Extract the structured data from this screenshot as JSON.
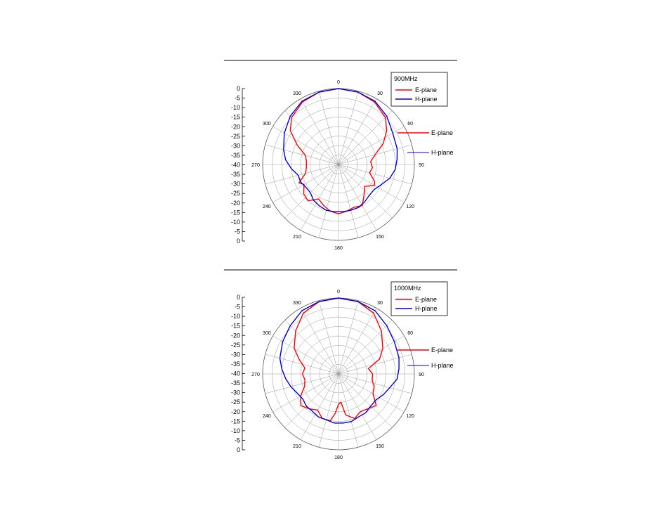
{
  "colors": {
    "e_plane": "#ff0000",
    "h_plane": "#0000dd",
    "grid": "#999999",
    "ink": "#000000"
  },
  "chart_data": [
    {
      "type": "polar",
      "legend_title": "900MHz",
      "legend_placement": "top-right",
      "grid": true,
      "rlim": [
        -40,
        0
      ],
      "radial_ticks": [
        "0",
        "-5",
        "-10",
        "-15",
        "-20",
        "-25",
        "-30",
        "-35",
        "-40",
        "-35",
        "-30",
        "-25",
        "-20",
        "-15",
        "-10",
        "-5",
        "0"
      ],
      "angle_labels": [
        "0",
        "30",
        "60",
        "90",
        "120",
        "150",
        "180",
        "210",
        "240",
        "270",
        "300",
        "330"
      ],
      "annotations": [
        "E-plane",
        "H-plane"
      ],
      "series": [
        {
          "name": "E-plane",
          "theta": [
            0,
            15,
            30,
            45,
            55,
            65,
            75,
            85,
            95,
            105,
            115,
            120,
            130,
            140,
            150,
            160,
            170,
            180,
            190,
            200,
            210,
            220,
            230,
            240,
            245,
            255,
            265,
            275,
            285,
            295,
            305,
            315,
            330,
            345
          ],
          "r_db": [
            0,
            -0.5,
            -2,
            -5,
            -9,
            -14,
            -20,
            -23,
            -22,
            -23,
            -19,
            -18,
            -22,
            -19,
            -15,
            -16,
            -15,
            -14,
            -15,
            -17,
            -19,
            -15,
            -16,
            -19,
            -17,
            -22,
            -23,
            -23,
            -22,
            -16,
            -9,
            -5,
            -2,
            -0.5
          ]
        },
        {
          "name": "H-plane",
          "theta": [
            0,
            15,
            30,
            45,
            60,
            75,
            85,
            95,
            105,
            115,
            125,
            135,
            145,
            155,
            165,
            175,
            185,
            195,
            205,
            215,
            225,
            235,
            245,
            255,
            265,
            275,
            285,
            300,
            315,
            330,
            345
          ],
          "r_db": [
            0,
            -0.5,
            -1.5,
            -4,
            -7,
            -8,
            -9,
            -10,
            -12,
            -15,
            -17,
            -17,
            -16,
            -15,
            -15,
            -15,
            -15,
            -15,
            -16,
            -17,
            -19,
            -19,
            -18,
            -18,
            -15,
            -12,
            -10,
            -7,
            -4,
            -1.5,
            -0.5
          ]
        }
      ]
    },
    {
      "type": "polar",
      "legend_title": "1000MHz",
      "legend_placement": "top-right",
      "grid": true,
      "rlim": [
        -40,
        0
      ],
      "radial_ticks": [
        "0",
        "-5",
        "-10",
        "-15",
        "-20",
        "-25",
        "-30",
        "-35",
        "-40",
        "-35",
        "-30",
        "-25",
        "-20",
        "-15",
        "-10",
        "-5",
        "0"
      ],
      "angle_labels": [
        "0",
        "30",
        "60",
        "90",
        "120",
        "150",
        "180",
        "210",
        "240",
        "270",
        "300",
        "330"
      ],
      "annotations": [
        "E-plane",
        "H-plane"
      ],
      "series": [
        {
          "name": "E-plane",
          "theta": [
            0,
            15,
            30,
            45,
            60,
            70,
            80,
            90,
            100,
            110,
            120,
            130,
            140,
            150,
            160,
            170,
            175,
            180,
            185,
            190,
            200,
            210,
            220,
            230,
            240,
            250,
            260,
            270,
            280,
            290,
            300,
            315,
            330,
            345
          ],
          "r_db": [
            0,
            -0.5,
            -3,
            -8,
            -13,
            -17,
            -24,
            -22,
            -22,
            -20,
            -19,
            -14,
            -16,
            -17,
            -15,
            -18,
            -25,
            -24,
            -19,
            -15,
            -15,
            -18,
            -16,
            -14,
            -17,
            -21,
            -22,
            -21,
            -22,
            -18,
            -13,
            -8,
            -3,
            -0.5
          ]
        },
        {
          "name": "H-plane",
          "theta": [
            0,
            15,
            30,
            45,
            60,
            75,
            85,
            95,
            105,
            115,
            125,
            135,
            145,
            155,
            165,
            175,
            185,
            195,
            205,
            215,
            225,
            235,
            245,
            255,
            265,
            275,
            285,
            300,
            315,
            330,
            345
          ],
          "r_db": [
            0,
            -0.5,
            -1.5,
            -4,
            -6,
            -7,
            -8,
            -9,
            -12,
            -14,
            -16,
            -16,
            -15,
            -15,
            -14,
            -14,
            -14,
            -15,
            -15,
            -16,
            -16,
            -17,
            -16,
            -14,
            -12,
            -10,
            -8,
            -6,
            -4,
            -1.5,
            -0.5
          ]
        }
      ]
    }
  ]
}
